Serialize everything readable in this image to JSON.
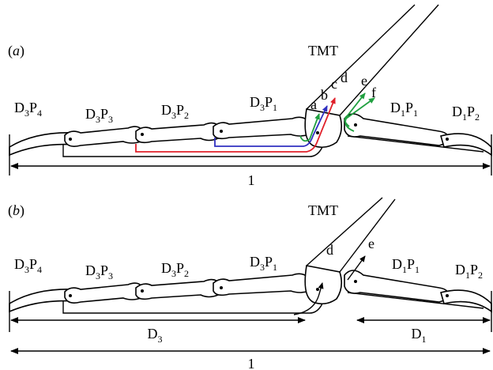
{
  "panel_a": {
    "tag": [
      "(",
      "a",
      ")"
    ],
    "tmt": "TMT",
    "d3p4": [
      "D",
      "3",
      "P",
      "4"
    ],
    "d3p3": [
      "D",
      "3",
      "P",
      "3"
    ],
    "d3p2": [
      "D",
      "3",
      "P",
      "2"
    ],
    "d3p1": [
      "D",
      "3",
      "P",
      "1"
    ],
    "tendons": [
      "a",
      "b",
      "c",
      "d",
      "e",
      "f"
    ],
    "d1p1": [
      "D",
      "1",
      "P",
      "1"
    ],
    "d1p2": [
      "D",
      "1",
      "P",
      "2"
    ],
    "total": "1"
  },
  "panel_b": {
    "tag": [
      "(",
      "b",
      ")"
    ],
    "tmt": "TMT",
    "d3p4": [
      "D",
      "3",
      "P",
      "4"
    ],
    "d3p3": [
      "D",
      "3",
      "P",
      "3"
    ],
    "d3p2": [
      "D",
      "3",
      "P",
      "2"
    ],
    "d3p1": [
      "D",
      "3",
      "P",
      "1"
    ],
    "tendons": [
      "d",
      "e"
    ],
    "d1p1": [
      "D",
      "1",
      "P",
      "1"
    ],
    "d1p2": [
      "D",
      "1",
      "P",
      "2"
    ],
    "d3_length": [
      "D",
      "3"
    ],
    "d1_length": [
      "D",
      "1"
    ],
    "total": "1"
  }
}
